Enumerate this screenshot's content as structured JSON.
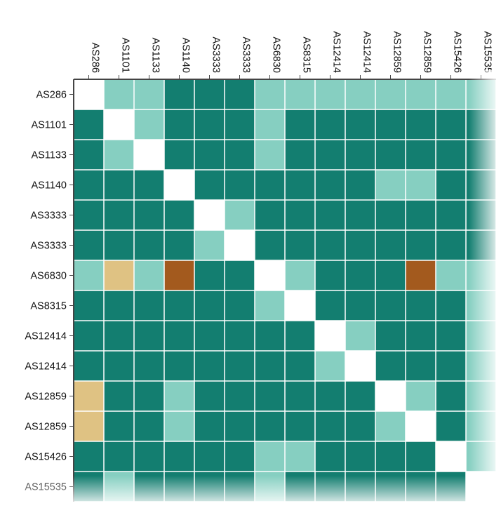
{
  "chart_data": {
    "type": "heatmap",
    "title": "",
    "xlabel": "",
    "ylabel": "",
    "x": [
      "AS286",
      "AS1101",
      "AS1133",
      "AS1140",
      "AS3333",
      "AS3333",
      "AS6830",
      "AS8315",
      "AS12414",
      "AS12414",
      "AS12859",
      "AS12859",
      "AS15426",
      "AS15535"
    ],
    "y": [
      "AS286",
      "AS1101",
      "AS1133",
      "AS1140",
      "AS3333",
      "AS3333",
      "AS6830",
      "AS8315",
      "AS12414",
      "AS12414",
      "AS12859",
      "AS12859",
      "AS15426",
      "AS15535"
    ],
    "levels": [
      "none",
      "light-teal",
      "dark-teal",
      "tan",
      "brown"
    ],
    "colors": {
      "none": "#ffffff",
      "light-teal": "#86cfc1",
      "dark-teal": "#137e70",
      "tan": "#dfc283",
      "brown": "#a35a1e",
      "grid": "#ffffff",
      "axis": "#444444"
    },
    "matrix": [
      [
        "none",
        "light-teal",
        "light-teal",
        "dark-teal",
        "dark-teal",
        "dark-teal",
        "light-teal",
        "light-teal",
        "light-teal",
        "light-teal",
        "light-teal",
        "light-teal",
        "light-teal",
        "light-teal"
      ],
      [
        "dark-teal",
        "none",
        "light-teal",
        "dark-teal",
        "dark-teal",
        "dark-teal",
        "light-teal",
        "dark-teal",
        "dark-teal",
        "dark-teal",
        "dark-teal",
        "dark-teal",
        "dark-teal",
        "dark-teal"
      ],
      [
        "dark-teal",
        "light-teal",
        "none",
        "dark-teal",
        "dark-teal",
        "dark-teal",
        "light-teal",
        "dark-teal",
        "dark-teal",
        "dark-teal",
        "dark-teal",
        "dark-teal",
        "dark-teal",
        "dark-teal"
      ],
      [
        "dark-teal",
        "dark-teal",
        "dark-teal",
        "none",
        "dark-teal",
        "dark-teal",
        "dark-teal",
        "dark-teal",
        "dark-teal",
        "dark-teal",
        "light-teal",
        "light-teal",
        "dark-teal",
        "dark-teal"
      ],
      [
        "dark-teal",
        "dark-teal",
        "dark-teal",
        "dark-teal",
        "none",
        "light-teal",
        "dark-teal",
        "dark-teal",
        "dark-teal",
        "dark-teal",
        "dark-teal",
        "dark-teal",
        "dark-teal",
        "dark-teal"
      ],
      [
        "dark-teal",
        "dark-teal",
        "dark-teal",
        "dark-teal",
        "light-teal",
        "none",
        "dark-teal",
        "dark-teal",
        "dark-teal",
        "dark-teal",
        "dark-teal",
        "dark-teal",
        "dark-teal",
        "dark-teal"
      ],
      [
        "light-teal",
        "tan",
        "light-teal",
        "brown",
        "dark-teal",
        "dark-teal",
        "none",
        "light-teal",
        "dark-teal",
        "dark-teal",
        "dark-teal",
        "brown",
        "light-teal",
        "light-teal"
      ],
      [
        "dark-teal",
        "dark-teal",
        "dark-teal",
        "dark-teal",
        "dark-teal",
        "dark-teal",
        "light-teal",
        "none",
        "dark-teal",
        "dark-teal",
        "dark-teal",
        "dark-teal",
        "dark-teal",
        "light-teal"
      ],
      [
        "dark-teal",
        "dark-teal",
        "dark-teal",
        "dark-teal",
        "dark-teal",
        "dark-teal",
        "dark-teal",
        "dark-teal",
        "none",
        "light-teal",
        "dark-teal",
        "dark-teal",
        "dark-teal",
        "light-teal"
      ],
      [
        "dark-teal",
        "dark-teal",
        "dark-teal",
        "dark-teal",
        "dark-teal",
        "dark-teal",
        "dark-teal",
        "dark-teal",
        "light-teal",
        "none",
        "dark-teal",
        "dark-teal",
        "dark-teal",
        "light-teal"
      ],
      [
        "tan",
        "dark-teal",
        "dark-teal",
        "light-teal",
        "dark-teal",
        "dark-teal",
        "dark-teal",
        "dark-teal",
        "dark-teal",
        "dark-teal",
        "none",
        "light-teal",
        "dark-teal",
        "light-teal"
      ],
      [
        "tan",
        "dark-teal",
        "dark-teal",
        "light-teal",
        "dark-teal",
        "dark-teal",
        "dark-teal",
        "dark-teal",
        "dark-teal",
        "dark-teal",
        "light-teal",
        "none",
        "dark-teal",
        "light-teal"
      ],
      [
        "dark-teal",
        "dark-teal",
        "dark-teal",
        "dark-teal",
        "dark-teal",
        "dark-teal",
        "light-teal",
        "light-teal",
        "dark-teal",
        "dark-teal",
        "dark-teal",
        "dark-teal",
        "none",
        "light-teal"
      ],
      [
        "dark-teal",
        "light-teal",
        "dark-teal",
        "dark-teal",
        "dark-teal",
        "dark-teal",
        "light-teal",
        "dark-teal",
        "dark-teal",
        "dark-teal",
        "dark-teal",
        "dark-teal",
        "dark-teal",
        "none"
      ]
    ],
    "grid": true,
    "legend": "none"
  }
}
